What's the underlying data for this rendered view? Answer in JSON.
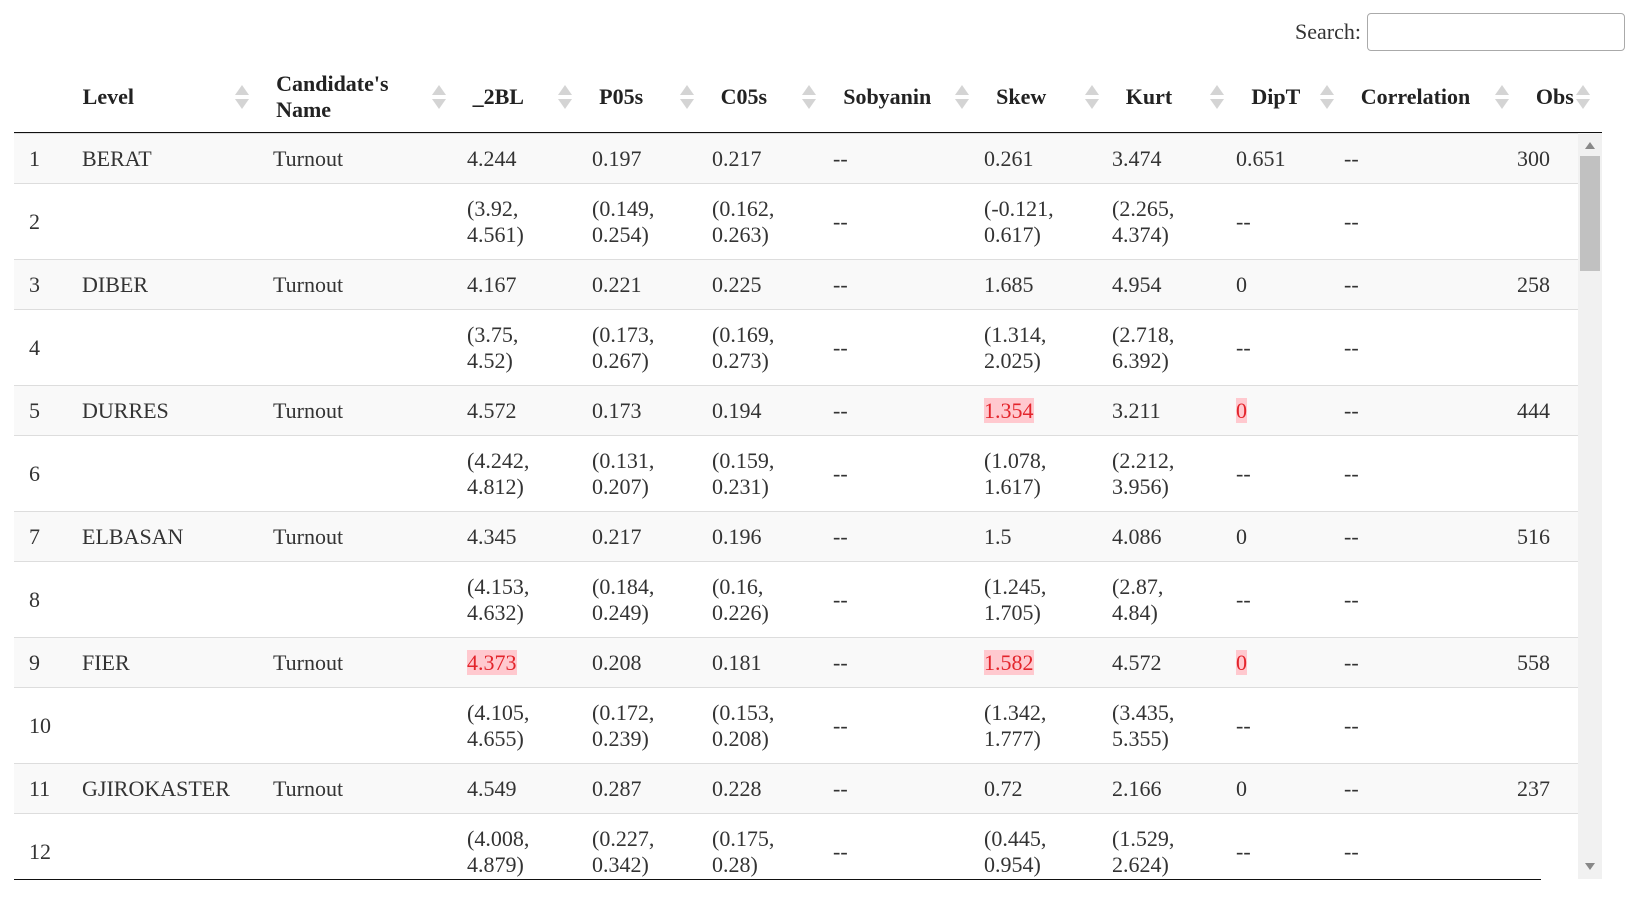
{
  "search": {
    "label": "Search:",
    "value": "",
    "placeholder": ""
  },
  "headers": [
    "",
    "Level",
    "Candidate's Name",
    "_2BL",
    "P05s",
    "C05s",
    "Sobyanin",
    "Skew",
    "Kurt",
    "DipT",
    "Correlation",
    "Obs"
  ],
  "rows": [
    [
      "1",
      "BERAT",
      "Turnout",
      "4.244",
      "0.197",
      "0.217",
      "--",
      "0.261",
      "3.474",
      "0.651",
      "--",
      "300"
    ],
    [
      "2",
      "",
      "",
      "(3.92, 4.561)",
      "(0.149, 0.254)",
      "(0.162, 0.263)",
      "--",
      "(-0.121, 0.617)",
      "(2.265, 4.374)",
      "--",
      "--",
      ""
    ],
    [
      "3",
      "DIBER",
      "Turnout",
      "4.167",
      "0.221",
      "0.225",
      "--",
      "1.685",
      "4.954",
      "0",
      "--",
      "258"
    ],
    [
      "4",
      "",
      "",
      "(3.75, 4.52)",
      "(0.173, 0.267)",
      "(0.169, 0.273)",
      "--",
      "(1.314, 2.025)",
      "(2.718, 6.392)",
      "--",
      "--",
      ""
    ],
    [
      "5",
      "DURRES",
      "Turnout",
      "4.572",
      "0.173",
      "0.194",
      "--",
      "1.354",
      "3.211",
      "0",
      "--",
      "444"
    ],
    [
      "6",
      "",
      "",
      "(4.242, 4.812)",
      "(0.131, 0.207)",
      "(0.159, 0.231)",
      "--",
      "(1.078, 1.617)",
      "(2.212, 3.956)",
      "--",
      "--",
      ""
    ],
    [
      "7",
      "ELBASAN",
      "Turnout",
      "4.345",
      "0.217",
      "0.196",
      "--",
      "1.5",
      "4.086",
      "0",
      "--",
      "516"
    ],
    [
      "8",
      "",
      "",
      "(4.153, 4.632)",
      "(0.184, 0.249)",
      "(0.16, 0.226)",
      "--",
      "(1.245, 1.705)",
      "(2.87, 4.84)",
      "--",
      "--",
      ""
    ],
    [
      "9",
      "FIER",
      "Turnout",
      "4.373",
      "0.208",
      "0.181",
      "--",
      "1.582",
      "4.572",
      "0",
      "--",
      "558"
    ],
    [
      "10",
      "",
      "",
      "(4.105, 4.655)",
      "(0.172, 0.239)",
      "(0.153, 0.208)",
      "--",
      "(1.342, 1.777)",
      "(3.435, 5.355)",
      "--",
      "--",
      ""
    ],
    [
      "11",
      "GJIROKASTER",
      "Turnout",
      "4.549",
      "0.287",
      "0.228",
      "--",
      "0.72",
      "2.166",
      "0",
      "--",
      "237"
    ],
    [
      "12",
      "",
      "",
      "(4.008, 4.879)",
      "(0.227, 0.342)",
      "(0.175, 0.28)",
      "--",
      "(0.445, 0.954)",
      "(1.529, 2.624)",
      "--",
      "--",
      ""
    ]
  ],
  "highlight_color": "#ffc9cf",
  "highlight_text_color": "#e3242b",
  "highlighted_cells": [
    [
      4,
      7
    ],
    [
      4,
      9
    ],
    [
      8,
      3
    ],
    [
      8,
      7
    ],
    [
      8,
      9
    ]
  ],
  "icons": {
    "sort": "sort-both-icon",
    "scroll_up": "scroll-up-arrow-icon",
    "scroll_down": "scroll-down-arrow-icon"
  }
}
